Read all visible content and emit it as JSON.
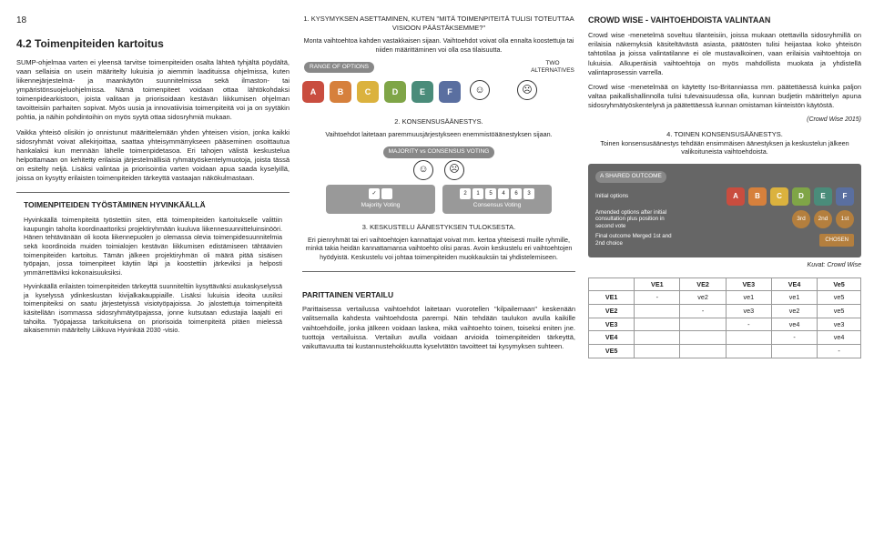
{
  "page_number": "18",
  "left": {
    "heading": "4.2 Toimenpiteiden kartoitus",
    "p1": "SUMP-ohjelmaa varten ei yleensä tarvitse toimenpiteiden osalta lähteä tyhjältä pöydältä, vaan sellaisia on usein määritelty lukuisia jo aiemmin laadituissa ohjelmissa, kuten liikennejärjestelmä- ja maankäytön suunnitelmissa sekä ilmaston- tai ympäristönsuojeluohjelmissa. Nämä toimenpiteet voidaan ottaa lähtökohdaksi toimenpidearkistoon, joista valitaan ja priorisoidaan kestävän liikkumisen ohjelman tavoitteisiin parhaiten sopivat. Myös uusia ja innovatiivisia toimenpiteitä voi ja on syytäkin pohtia, ja näihin pohdintoihin on myös syytä ottaa sidosryhmiä mukaan.",
    "p2": "Vaikka yhteisö olisikin jo onnistunut määrittelemään yhden yhteisen vision, jonka kaikki sidosryhmät voivat allekirjoittaa, saattaa yhteisymmärrykseen pääseminen osoittautua hankalaksi kun mennään lähelle toimenpidetasoa. Eri tahojen välistä keskustelua helpottamaan on kehitetty erilaisia järjestelmällisiä ryhmätyöskentelymuotoja, joista tässä on esitelty neljä. Lisäksi valintaa ja priorisointia varten voidaan apua saada kyselyillä, joissa on kysytty erilaisten toimenpiteiden tärkeyttä vastaajan näkökulmastaan.",
    "callout_title": "TOIMENPITEIDEN TYÖSTÄMINEN HYVINKÄÄLLÄ",
    "c1": "Hyvinkäällä toimenpiteitä työstettiin siten, että toimenpiteiden kartoitukselle valittiin kaupungin taholta koordinaattoriksi projektiryhmään kuuluva liikennesuunnitteluinsinööri. Hänen tehtävänään oli koota liikennepuolen jo olemassa olevia toimenpidesuunnitelmia sekä koordinoida muiden toimialojen kestävän liikkumisen edistämiseen tähtäävien toimenpiteiden kartoitus. Tämän jälkeen projektiryhmän oli määrä pitää sisäisen työpajan, jossa toimenpiteet käytiin läpi ja koostettiin järkeviksi ja helposti ymmärrettäviksi kokonaisuuksiksi.",
    "c2": "Hyvinkäällä erilaisten toimenpiteiden tärkeyttä suunniteltiin kysyttäväksi asukaskyselyssä ja kyselyssä ydinkeskustan kivijalkakauppiaille. Lisäksi lukuisia ideoita uusiksi toimenpiteiksi on saatu järjestetyissä visiotyöpajoissa. Jo jalostettuja toimenpiteitä käsitellään isommassa sidosryhmätyöpajassa, jonne kutsutaan edustajia laajalti eri tahoilta. Työpajassa tarkoituksena on priorisoida toimenpiteitä pitäen mielessä aikaisemmin määritelty Liikkuva Hyvinkää 2030 -visio."
  },
  "mid": {
    "b1_title": "1. KYSYMYKSEN ASETTAMINEN, KUTEN \"MITÄ TOIMENPITEITÄ TULISI TOTEUTTAA VISIOON PÄÄSTÄKSEMME?\"",
    "b1_desc": "Monta vaihtoehtoa kahden vastakkaisen sijaan. Vaihtoehdot voivat olla ennalta koostettuja tai niiden määrittäminen voi olla osa tilaisuutta.",
    "range_label": "RANGE OF OPTIONS",
    "two_alt_label": "TWO ALTERNATIVES",
    "opts": [
      {
        "l": "A",
        "c": "#c94d3f"
      },
      {
        "l": "B",
        "c": "#d6803c"
      },
      {
        "l": "C",
        "c": "#dbb23e"
      },
      {
        "l": "D",
        "c": "#7fa547"
      },
      {
        "l": "E",
        "c": "#4a8c7a"
      },
      {
        "l": "F",
        "c": "#5a6fa0"
      }
    ],
    "b2_title": "2. KONSENSUSÄÄNESTYS.",
    "b2_desc": "Vaihtoehdot laitetaan paremmuusjärjestykseen enemmistöäänestyksen sijaan.",
    "maj_vs_cons": "MAJORITY vs CONSENSUS VOTING",
    "majority": "Majority Voting",
    "consensus": "Consensus Voting",
    "cons_nums": [
      "2",
      "1",
      "5",
      "4",
      "6",
      "3"
    ],
    "b3_title": "3. KESKUSTELU ÄÄNESTYKSEN TULOKSESTA.",
    "b3_desc": "Eri pienryhmät tai eri vaihtoehtojen kannattajat voivat mm. kertoa yhteisesti muille ryhmille, minkä takia heidän kannattamansa vaihtoehto olisi paras. Avoin keskustelu eri vaihtoehtojen hyödyistä. Keskustelu voi johtaa toimenpiteiden muokkauksiin tai yhdistelemiseen.",
    "paritt_h": "PARITTAINEN VERTAILU",
    "paritt_p": "Parittaisessa vertailussa vaihtoehdot laitetaan vuorotellen \"kilpailemaan\" keskenään valitsemalla kahdesta vaihtoehdosta parempi. Näin tehdään taulukon avulla kaikille vaihtoehdoille, jonka jälkeen voidaan laskea, mikä vaihtoehto toinen, toiseksi eniten jne. tuottoja vertailuissa. Vertailun avulla voidaan arvioida toimenpiteiden tärkeyttä, vaikuttavuutta tai kustannustehokkuutta kyselvtätön tavoitteet tai kysymyksen suhteen."
  },
  "right": {
    "h": "CROWD WISE - VAIHTOEHDOISTA VALINTAAN",
    "p1": "Crowd wise -menetelmä soveltuu tilanteisiin, joissa mukaan otettavilla sidosryhmillä on erilaisia näkemyksiä käsiteltävästä asiasta, päätösten tulisi heijastaa koko yhteisön tahtotilaa ja joissa valintatilanne ei ole mustavalkoinen, vaan erilaisia vaihtoehtoja on lukuisia. Alkuperäisiä vaihtoehtoja on myös mahdollista muokata ja yhdistellä valintaprosessin varrella.",
    "p2": "Crowd wise -menetelmää on käytetty Iso-Britanniassa mm. päätettäessä kuinka paljon valtaa paikallishallinnolla tulisi tulevaisuudessa olla, kunnan budjetin määrittelyn apuna sidosryhmätyöskentelynä ja päätettäessä kunnan omistaman kiinteistön käytöstä.",
    "credit1": "(Crowd Wise 2015)",
    "h4_title": "4. TOINEN KONSENSUSÄÄNESTYS.",
    "h4_desc": "Toinen konsensusäänestys tehdään ensimmäisen äänestyksen ja keskustelun jälkeen valikoituneista vaihtoehdoista.",
    "shared_hdr": "A SHARED OUTCOME",
    "so_r1": "Initial options",
    "so_r2": "Amended options after initial consultation plus position in second vote",
    "so_r3": "Final outcome Merged 1st and 2nd choice",
    "circles": [
      "3rd",
      "2nd",
      "1st"
    ],
    "chosen": "CHOSEN",
    "credit2": "Kuvat: Crowd Wise",
    "table": {
      "cols": [
        "",
        "VE1",
        "VE2",
        "VE3",
        "VE4",
        "Ve5"
      ],
      "rows": [
        [
          "VE1",
          "-",
          "ve2",
          "ve1",
          "ve1",
          "ve5"
        ],
        [
          "VE2",
          "",
          "-",
          "ve3",
          "ve2",
          "ve5"
        ],
        [
          "VE3",
          "",
          "",
          "-",
          "ve4",
          "ve3"
        ],
        [
          "VE4",
          "",
          "",
          "",
          "-",
          "ve4"
        ],
        [
          "VE5",
          "",
          "",
          "",
          "",
          "-"
        ]
      ]
    }
  },
  "face_smile": "☺",
  "face_frown": "☹",
  "check": "✓"
}
